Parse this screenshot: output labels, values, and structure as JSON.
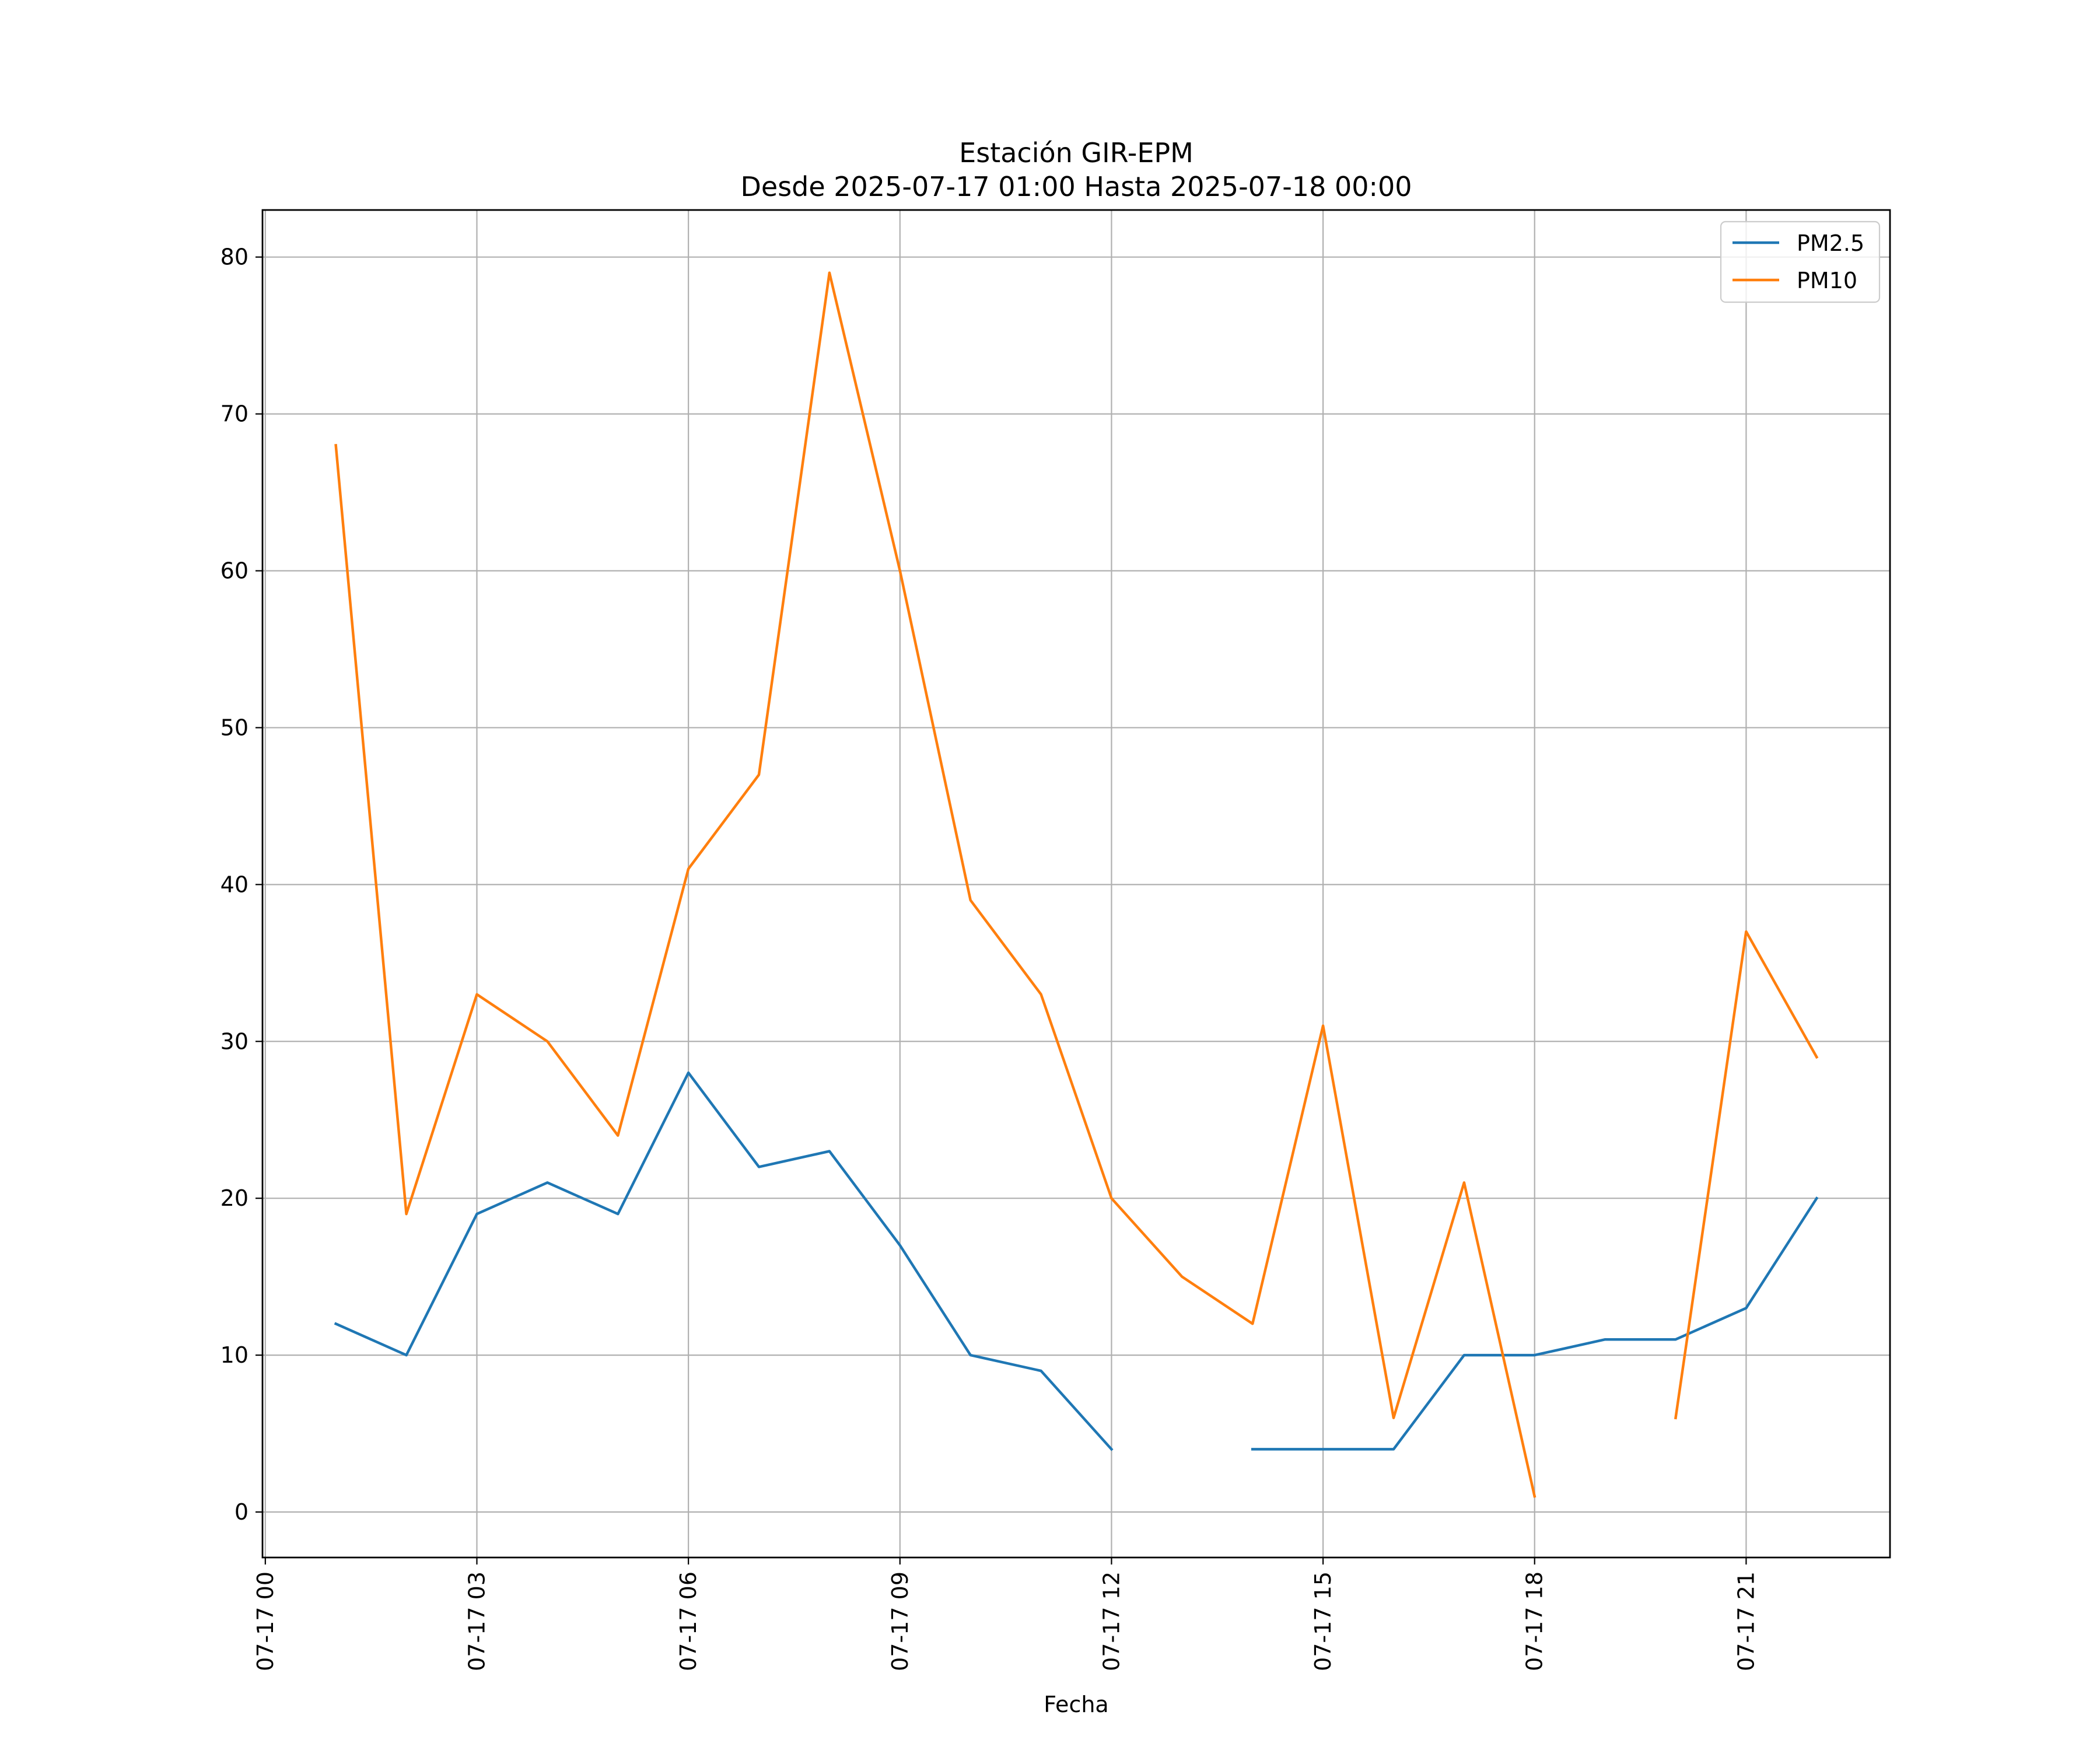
{
  "chart_data": {
    "type": "line",
    "title": "Estación GIR-EPM",
    "subtitle": "Desde 2025-07-17 01:00 Hasta 2025-07-18 00:00",
    "xlabel": "Fecha",
    "ylabel": "",
    "x": [
      "07-17 01",
      "07-17 02",
      "07-17 03",
      "07-17 04",
      "07-17 05",
      "07-17 06",
      "07-17 07",
      "07-17 08",
      "07-17 09",
      "07-17 10",
      "07-17 11",
      "07-17 12",
      "07-17 13",
      "07-17 14",
      "07-17 15",
      "07-17 16",
      "07-17 17",
      "07-17 18",
      "07-17 19",
      "07-17 20",
      "07-17 21",
      "07-17 22"
    ],
    "x_hours": [
      1,
      2,
      3,
      4,
      5,
      6,
      7,
      8,
      9,
      10,
      11,
      12,
      13,
      14,
      15,
      16,
      17,
      18,
      19,
      20,
      21,
      22
    ],
    "xlim_hours": [
      -0.04,
      23.04
    ],
    "xticks": [
      "07-17 00",
      "07-17 03",
      "07-17 06",
      "07-17 09",
      "07-17 12",
      "07-17 15",
      "07-17 18",
      "07-17 21"
    ],
    "xtick_hours": [
      0,
      3,
      6,
      9,
      12,
      15,
      18,
      21
    ],
    "yticks": [
      0,
      10,
      20,
      30,
      40,
      50,
      60,
      70,
      80
    ],
    "ylim": [
      -2.9,
      83
    ],
    "grid": true,
    "legend_position": "top-right",
    "series": [
      {
        "name": "PM2.5",
        "color": "#1f77b4",
        "values": [
          12,
          10,
          19,
          21,
          19,
          28,
          22,
          23,
          17,
          10,
          9,
          4,
          null,
          4,
          4,
          4,
          10,
          10,
          11,
          11,
          13,
          20
        ]
      },
      {
        "name": "PM10",
        "color": "#ff7f0e",
        "values": [
          68,
          19,
          33,
          30,
          24,
          41,
          47,
          79,
          60,
          39,
          33,
          20,
          15,
          12,
          31,
          6,
          21,
          1,
          null,
          6,
          37,
          29
        ]
      }
    ]
  }
}
